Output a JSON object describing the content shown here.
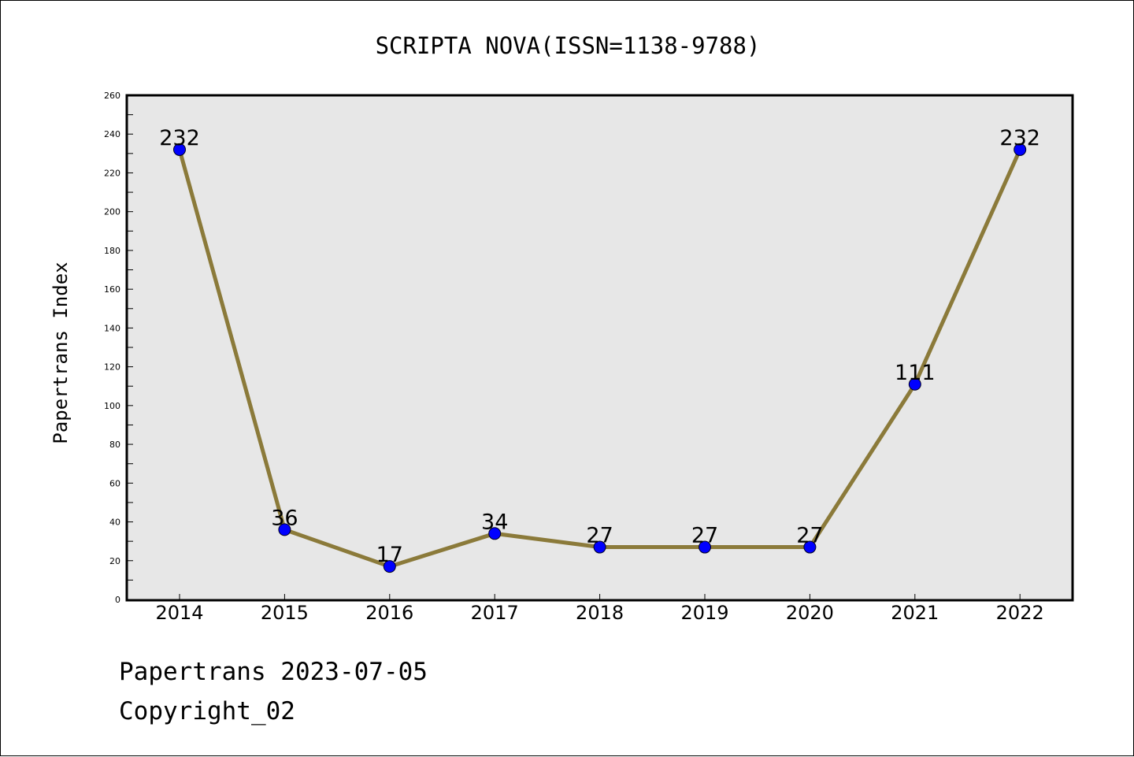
{
  "chart_data": {
    "type": "line",
    "title": "SCRIPTA NOVA(ISSN=1138-9788)",
    "xlabel": "",
    "ylabel": "Papertrans Index",
    "categories": [
      "2014",
      "2015",
      "2016",
      "2017",
      "2018",
      "2019",
      "2020",
      "2021",
      "2022"
    ],
    "series": [
      {
        "values": [
          232,
          36,
          17,
          34,
          27,
          27,
          27,
          111,
          232
        ]
      }
    ],
    "ylim": [
      0,
      260
    ],
    "yticks": [
      0,
      20,
      40,
      60,
      80,
      100,
      120,
      140,
      160,
      180,
      200,
      220,
      240,
      260
    ],
    "grid": false,
    "data_labels": true,
    "colors": {
      "line": "#8b7a3a",
      "marker": "#0000ff",
      "plot_background": "#e7e7e7"
    }
  },
  "footer": {
    "line1": "Papertrans 2023-07-05",
    "line2": "Copyright_02"
  }
}
